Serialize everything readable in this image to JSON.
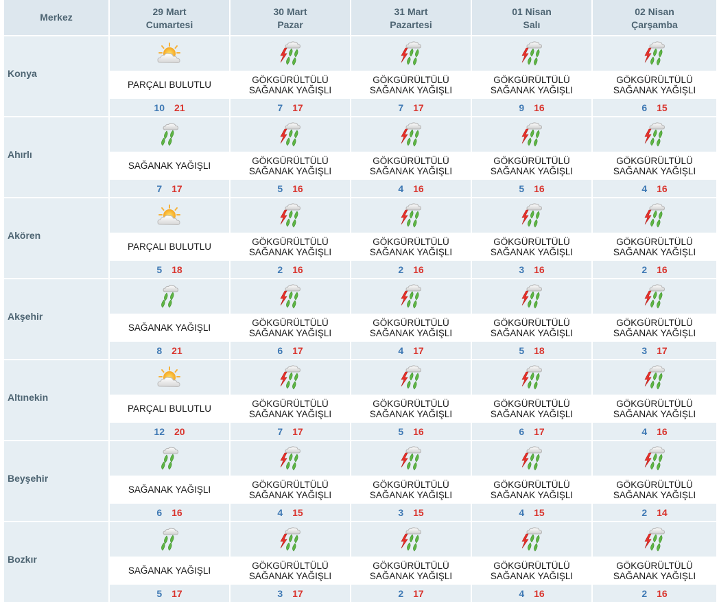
{
  "header": {
    "merkez": "Merkez",
    "days": [
      {
        "date": "29 Mart",
        "weekday": "Cumartesi"
      },
      {
        "date": "30 Mart",
        "weekday": "Pazar"
      },
      {
        "date": "31 Mart",
        "weekday": "Pazartesi"
      },
      {
        "date": "01 Nisan",
        "weekday": "Salı"
      },
      {
        "date": "02 Nisan",
        "weekday": "Çarşamba"
      }
    ]
  },
  "rows": [
    {
      "city": "Konya",
      "days": [
        {
          "icon": "partly-cloudy-icon",
          "desc": "PARÇALI BULUTLU",
          "min": "10",
          "max": "21"
        },
        {
          "icon": "thunder-shower-icon",
          "desc": "GÖKGÜRÜLTÜLÜ\nSAĞANAK YAĞIŞLI",
          "min": "7",
          "max": "17"
        },
        {
          "icon": "thunder-shower-icon",
          "desc": "GÖKGÜRÜLTÜLÜ\nSAĞANAK YAĞIŞLI",
          "min": "7",
          "max": "17"
        },
        {
          "icon": "thunder-shower-icon",
          "desc": "GÖKGÜRÜLTÜLÜ\nSAĞANAK YAĞIŞLI",
          "min": "9",
          "max": "16"
        },
        {
          "icon": "thunder-shower-icon",
          "desc": "GÖKGÜRÜLTÜLÜ\nSAĞANAK YAĞIŞLI",
          "min": "6",
          "max": "15"
        }
      ]
    },
    {
      "city": "Ahırlı",
      "days": [
        {
          "icon": "shower-icon",
          "desc": "SAĞANAK YAĞIŞLI",
          "min": "7",
          "max": "17"
        },
        {
          "icon": "thunder-shower-icon",
          "desc": "GÖKGÜRÜLTÜLÜ\nSAĞANAK YAĞIŞLI",
          "min": "5",
          "max": "16"
        },
        {
          "icon": "thunder-shower-icon",
          "desc": "GÖKGÜRÜLTÜLÜ\nSAĞANAK YAĞIŞLI",
          "min": "4",
          "max": "16"
        },
        {
          "icon": "thunder-shower-icon",
          "desc": "GÖKGÜRÜLTÜLÜ\nSAĞANAK YAĞIŞLI",
          "min": "5",
          "max": "16"
        },
        {
          "icon": "thunder-shower-icon",
          "desc": "GÖKGÜRÜLTÜLÜ\nSAĞANAK YAĞIŞLI",
          "min": "4",
          "max": "16"
        }
      ]
    },
    {
      "city": "Akören",
      "days": [
        {
          "icon": "partly-cloudy-icon",
          "desc": "PARÇALI BULUTLU",
          "min": "5",
          "max": "18"
        },
        {
          "icon": "thunder-shower-icon",
          "desc": "GÖKGÜRÜLTÜLÜ\nSAĞANAK YAĞIŞLI",
          "min": "2",
          "max": "16"
        },
        {
          "icon": "thunder-shower-icon",
          "desc": "GÖKGÜRÜLTÜLÜ\nSAĞANAK YAĞIŞLI",
          "min": "2",
          "max": "16"
        },
        {
          "icon": "thunder-shower-icon",
          "desc": "GÖKGÜRÜLTÜLÜ\nSAĞANAK YAĞIŞLI",
          "min": "3",
          "max": "16"
        },
        {
          "icon": "thunder-shower-icon",
          "desc": "GÖKGÜRÜLTÜLÜ\nSAĞANAK YAĞIŞLI",
          "min": "2",
          "max": "16"
        }
      ]
    },
    {
      "city": "Akşehir",
      "days": [
        {
          "icon": "shower-icon",
          "desc": "SAĞANAK YAĞIŞLI",
          "min": "8",
          "max": "21"
        },
        {
          "icon": "thunder-shower-icon",
          "desc": "GÖKGÜRÜLTÜLÜ\nSAĞANAK YAĞIŞLI",
          "min": "6",
          "max": "17"
        },
        {
          "icon": "thunder-shower-icon",
          "desc": "GÖKGÜRÜLTÜLÜ\nSAĞANAK YAĞIŞLI",
          "min": "4",
          "max": "17"
        },
        {
          "icon": "thunder-shower-icon",
          "desc": "GÖKGÜRÜLTÜLÜ\nSAĞANAK YAĞIŞLI",
          "min": "5",
          "max": "18"
        },
        {
          "icon": "thunder-shower-icon",
          "desc": "GÖKGÜRÜLTÜLÜ\nSAĞANAK YAĞIŞLI",
          "min": "3",
          "max": "17"
        }
      ]
    },
    {
      "city": "Altınekin",
      "days": [
        {
          "icon": "partly-cloudy-icon",
          "desc": "PARÇALI BULUTLU",
          "min": "12",
          "max": "20"
        },
        {
          "icon": "thunder-shower-icon",
          "desc": "GÖKGÜRÜLTÜLÜ\nSAĞANAK YAĞIŞLI",
          "min": "7",
          "max": "17"
        },
        {
          "icon": "thunder-shower-icon",
          "desc": "GÖKGÜRÜLTÜLÜ\nSAĞANAK YAĞIŞLI",
          "min": "5",
          "max": "16"
        },
        {
          "icon": "thunder-shower-icon",
          "desc": "GÖKGÜRÜLTÜLÜ\nSAĞANAK YAĞIŞLI",
          "min": "6",
          "max": "17"
        },
        {
          "icon": "thunder-shower-icon",
          "desc": "GÖKGÜRÜLTÜLÜ\nSAĞANAK YAĞIŞLI",
          "min": "4",
          "max": "16"
        }
      ]
    },
    {
      "city": "Beyşehir",
      "days": [
        {
          "icon": "shower-icon",
          "desc": "SAĞANAK YAĞIŞLI",
          "min": "6",
          "max": "16"
        },
        {
          "icon": "thunder-shower-icon",
          "desc": "GÖKGÜRÜLTÜLÜ\nSAĞANAK YAĞIŞLI",
          "min": "4",
          "max": "15"
        },
        {
          "icon": "thunder-shower-icon",
          "desc": "GÖKGÜRÜLTÜLÜ\nSAĞANAK YAĞIŞLI",
          "min": "3",
          "max": "15"
        },
        {
          "icon": "thunder-shower-icon",
          "desc": "GÖKGÜRÜLTÜLÜ\nSAĞANAK YAĞIŞLI",
          "min": "4",
          "max": "15"
        },
        {
          "icon": "thunder-shower-icon",
          "desc": "GÖKGÜRÜLTÜLÜ\nSAĞANAK YAĞIŞLI",
          "min": "2",
          "max": "14"
        }
      ]
    },
    {
      "city": "Bozkır",
      "days": [
        {
          "icon": "shower-icon",
          "desc": "SAĞANAK YAĞIŞLI",
          "min": "5",
          "max": "17"
        },
        {
          "icon": "thunder-shower-icon",
          "desc": "GÖKGÜRÜLTÜLÜ\nSAĞANAK YAĞIŞLI",
          "min": "3",
          "max": "17"
        },
        {
          "icon": "thunder-shower-icon",
          "desc": "GÖKGÜRÜLTÜLÜ\nSAĞANAK YAĞIŞLI",
          "min": "2",
          "max": "17"
        },
        {
          "icon": "thunder-shower-icon",
          "desc": "GÖKGÜRÜLTÜLÜ\nSAĞANAK YAĞIŞLI",
          "min": "4",
          "max": "16"
        },
        {
          "icon": "thunder-shower-icon",
          "desc": "GÖKGÜRÜLTÜLÜ\nSAĞANAK YAĞIŞLI",
          "min": "2",
          "max": "16"
        }
      ]
    }
  ],
  "colors": {
    "header_bg": "#dde7ee",
    "row_bg": "#e6eef3",
    "text_dark": "#4d6472",
    "min_temp": "#3f79b4",
    "max_temp": "#d9352e"
  }
}
